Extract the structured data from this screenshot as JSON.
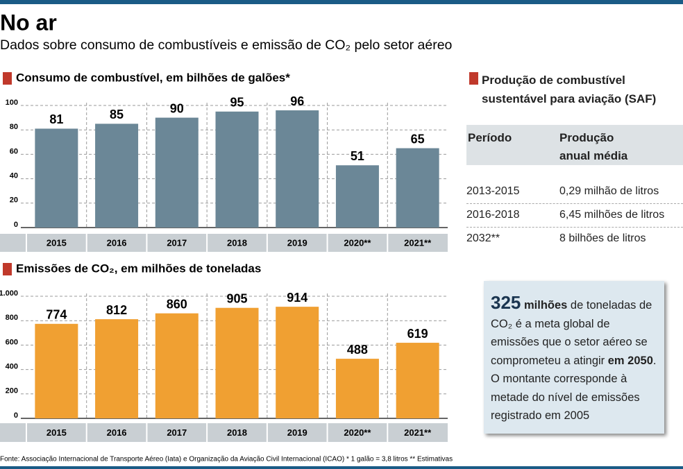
{
  "header": {
    "title": "No ar",
    "subtitle": "Dados sobre consumo de combustíveis e emissão de CO₂ pelo setor aéreo"
  },
  "chart_data": [
    {
      "type": "bar",
      "title": "Consumo de combustível, em bilhões de galões*",
      "categories": [
        "2015",
        "2016",
        "2017",
        "2018",
        "2019",
        "2020**",
        "2021**"
      ],
      "values": [
        81,
        85,
        90,
        95,
        96,
        51,
        65
      ],
      "color": "#6b8797",
      "ylim": [
        0,
        100
      ],
      "yticks": [
        0,
        20,
        40,
        60,
        80,
        100
      ],
      "grid": true
    },
    {
      "type": "bar",
      "title": "Emissões de CO₂, em milhões de toneladas",
      "categories": [
        "2015",
        "2016",
        "2017",
        "2018",
        "2019",
        "2020**",
        "2021**"
      ],
      "values": [
        774,
        812,
        860,
        905,
        914,
        488,
        619
      ],
      "color": "#f0a032",
      "ylim": [
        0,
        1000
      ],
      "yticks": [
        0,
        200,
        400,
        600,
        800,
        {
          "value": 1000,
          "label": "1.000"
        }
      ],
      "grid": true
    }
  ],
  "saf": {
    "title_lines": [
      "Produção de combustível",
      "sustentável para aviação (SAF)"
    ],
    "headers": [
      "Período",
      "Produção anual média"
    ],
    "rows": [
      [
        "2013-2015",
        "0,29 milhão de litros"
      ],
      [
        "2016-2018",
        "6,45 milhões de litros"
      ],
      [
        "2032**",
        "8 bilhões de litros"
      ]
    ]
  },
  "callout": {
    "number": "325",
    "unit": "milhões",
    "text": " de toneladas de CO₂ é a meta global de emissões que o setor aéreo se comprometeu a atingir ",
    "highlight": "em 2050",
    "rest": ". O montante corresponde à metade do nível de emissões registrado em 2005"
  },
  "source": "Fonte: Associação Internacional de Transporte Aéreo (Iata) e Organização da Aviação Civil Internacional (ICAO) * 1 galão = 3,8 litros ** Estimativas"
}
